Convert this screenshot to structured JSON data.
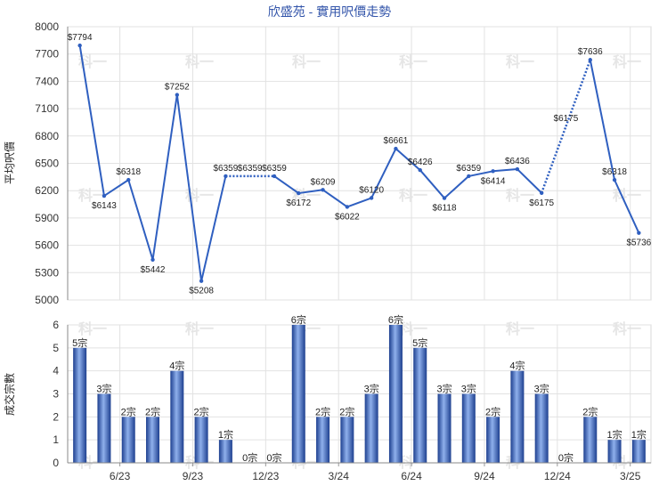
{
  "chart_data": [
    {
      "type": "line",
      "title": "欣盛苑 - 實用呎價走勢",
      "ylabel": "平均呎價",
      "ylim": [
        5000,
        8000
      ],
      "yticks": [
        5000,
        5300,
        5600,
        5900,
        6200,
        6500,
        6800,
        7100,
        7400,
        7700,
        8000
      ],
      "x": [
        "2023-04",
        "2023-05",
        "2023-06",
        "2023-07",
        "2023-08",
        "2023-09",
        "2023-10",
        "2023-11",
        "2023-12",
        "2024-01",
        "2024-02",
        "2024-03",
        "2024-04",
        "2024-05",
        "2024-06",
        "2024-07",
        "2024-08",
        "2024-09",
        "2024-10",
        "2024-11",
        "2024-12",
        "2025-01",
        "2025-02",
        "2025-03"
      ],
      "series": [
        {
          "values": [
            7794,
            6143,
            6318,
            5442,
            7252,
            5208,
            6359,
            null,
            6359,
            6172,
            6209,
            6022,
            6120,
            6661,
            6426,
            6118,
            6359,
            6414,
            6436,
            6175,
            null,
            7636,
            6318,
            5736
          ],
          "labels": [
            "$7794",
            "$6143",
            "$6318",
            "$5442",
            "$7252",
            "$5208",
            "$6359",
            "$6359",
            "$6359",
            "$6172",
            "$6209",
            "$6022",
            "$6120",
            "$6661",
            "$6426",
            "$6118",
            "$6359",
            "$6414",
            "$6436",
            "$6175",
            "$6175",
            "$7636",
            "$6318",
            "$5736"
          ],
          "color": "#2f5fc0",
          "gap_style": "dotted"
        }
      ],
      "grid": true
    },
    {
      "type": "bar",
      "ylabel": "成交宗數",
      "ylim": [
        0,
        6
      ],
      "yticks": [
        0,
        1,
        2,
        3,
        4,
        5,
        6
      ],
      "x": [
        "2023-04",
        "2023-05",
        "2023-06",
        "2023-07",
        "2023-08",
        "2023-09",
        "2023-10",
        "2023-11",
        "2023-12",
        "2024-01",
        "2024-02",
        "2024-03",
        "2024-04",
        "2024-05",
        "2024-06",
        "2024-07",
        "2024-08",
        "2024-09",
        "2024-10",
        "2024-11",
        "2024-12",
        "2025-01",
        "2025-02",
        "2025-03"
      ],
      "x_tick_labels": [
        "6/23",
        "9/23",
        "12/23",
        "3/24",
        "6/24",
        "9/24",
        "12/24",
        "3/25"
      ],
      "values": [
        5,
        3,
        2,
        2,
        4,
        2,
        1,
        0,
        0,
        6,
        2,
        2,
        3,
        6,
        5,
        3,
        3,
        2,
        4,
        3,
        0,
        2,
        1,
        1
      ],
      "labels": [
        "5宗",
        "3宗",
        "2宗",
        "2宗",
        "4宗",
        "2宗",
        "1宗",
        "0宗",
        "0宗",
        "6宗",
        "2宗",
        "2宗",
        "3宗",
        "6宗",
        "5宗",
        "3宗",
        "3宗",
        "2宗",
        "4宗",
        "3宗",
        "0宗",
        "2宗",
        "1宗",
        "1宗"
      ],
      "color": "#3a68c8",
      "grid": true
    }
  ],
  "watermark": "科一"
}
